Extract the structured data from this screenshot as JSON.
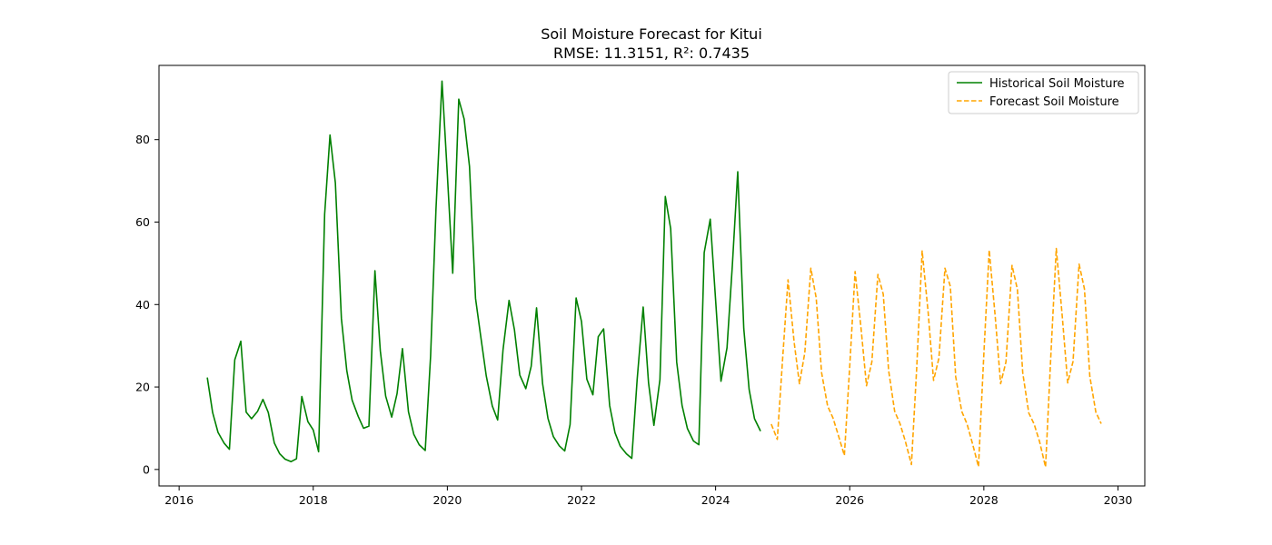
{
  "chart_data": {
    "type": "line",
    "title": "Soil Moisture Forecast for Kitui",
    "subtitle": "RMSE: 11.3151, R²: 0.7435",
    "xlabel": "",
    "ylabel": "",
    "xlim": [
      2015.7,
      2030.4
    ],
    "ylim": [
      -4,
      98
    ],
    "x_ticks": [
      2016,
      2018,
      2020,
      2022,
      2024,
      2026,
      2028,
      2030
    ],
    "y_ticks": [
      0,
      20,
      40,
      60,
      80
    ],
    "grid": false,
    "legend_position": "top-right",
    "series": [
      {
        "name": "Historical Soil Moisture",
        "color": "#008000",
        "style": "solid",
        "x": [
          2016.42,
          2016.5,
          2016.58,
          2016.67,
          2016.75,
          2016.83,
          2016.92,
          2017.0,
          2017.08,
          2017.17,
          2017.25,
          2017.33,
          2017.42,
          2017.5,
          2017.58,
          2017.67,
          2017.75,
          2017.83,
          2017.92,
          2018.0,
          2018.08,
          2018.17,
          2018.25,
          2018.33,
          2018.42,
          2018.5,
          2018.58,
          2018.67,
          2018.75,
          2018.83,
          2018.92,
          2019.0,
          2019.08,
          2019.17,
          2019.25,
          2019.33,
          2019.42,
          2019.5,
          2019.58,
          2019.67,
          2019.75,
          2019.83,
          2019.92,
          2020.0,
          2020.08,
          2020.17,
          2020.25,
          2020.33,
          2020.42,
          2020.5,
          2020.58,
          2020.67,
          2020.75,
          2020.83,
          2020.92,
          2021.0,
          2021.08,
          2021.17,
          2021.25,
          2021.33,
          2021.42,
          2021.5,
          2021.58,
          2021.67,
          2021.75,
          2021.83,
          2021.92,
          2022.0,
          2022.08,
          2022.17,
          2022.25,
          2022.33,
          2022.42,
          2022.5,
          2022.58,
          2022.67,
          2022.75,
          2022.83,
          2022.92,
          2023.0,
          2023.08,
          2023.17,
          2023.25,
          2023.33,
          2023.42,
          2023.5,
          2023.58,
          2023.67,
          2023.75,
          2023.83,
          2023.92,
          2024.0,
          2024.08,
          2024.17,
          2024.25,
          2024.33,
          2024.42,
          2024.5,
          2024.58,
          2024.67
        ],
        "values": [
          22.3,
          13.8,
          9.0,
          6.4,
          4.9,
          26.6,
          31.1,
          13.9,
          12.3,
          14.1,
          17.0,
          13.8,
          6.4,
          3.8,
          2.5,
          1.9,
          2.6,
          17.7,
          11.6,
          9.6,
          4.3,
          61.9,
          81.1,
          69.5,
          36.6,
          24.0,
          16.8,
          12.9,
          10.0,
          10.5,
          48.2,
          28.8,
          17.8,
          12.7,
          18.4,
          29.3,
          14.0,
          8.5,
          6.0,
          4.6,
          27.5,
          63.0,
          94.2,
          71.5,
          47.6,
          89.8,
          85.0,
          73.5,
          41.5,
          32.0,
          22.7,
          15.4,
          12.0,
          29.0,
          41.0,
          33.9,
          22.9,
          19.6,
          25.0,
          39.2,
          20.8,
          12.4,
          8.0,
          5.7,
          4.5,
          10.9,
          41.6,
          35.9,
          21.9,
          18.1,
          32.2,
          34.1,
          15.5,
          8.9,
          5.6,
          3.8,
          2.7,
          21.8,
          39.4,
          21.0,
          10.7,
          21.8,
          66.2,
          58.4,
          26.0,
          15.5,
          9.9,
          6.9,
          6.0,
          52.6,
          60.7,
          41.1,
          21.4,
          29.5,
          49.6,
          72.2,
          34.2,
          19.4,
          12.3,
          9.3
        ]
      },
      {
        "name": "Forecast Soil Moisture",
        "color": "#ffa500",
        "style": "dashed",
        "x": [
          2024.83,
          2024.92,
          2025.0,
          2025.08,
          2025.17,
          2025.25,
          2025.33,
          2025.42,
          2025.5,
          2025.58,
          2025.67,
          2025.75,
          2025.83,
          2025.92,
          2026.0,
          2026.08,
          2026.17,
          2026.25,
          2026.33,
          2026.42,
          2026.5,
          2026.58,
          2026.67,
          2026.75,
          2026.83,
          2026.92,
          2027.0,
          2027.08,
          2027.17,
          2027.25,
          2027.33,
          2027.42,
          2027.5,
          2027.58,
          2027.67,
          2027.75,
          2027.83,
          2027.92,
          2028.0,
          2028.08,
          2028.17,
          2028.25,
          2028.33,
          2028.42,
          2028.5,
          2028.58,
          2028.67,
          2028.75,
          2028.83,
          2028.92,
          2029.0,
          2029.08,
          2029.17,
          2029.25,
          2029.33,
          2029.42,
          2029.5,
          2029.58,
          2029.67,
          2029.75
        ],
        "values": [
          11.0,
          7.3,
          27.0,
          46.0,
          31.0,
          20.8,
          28.3,
          48.8,
          41.6,
          23.5,
          15.4,
          12.5,
          8.3,
          3.4,
          25.0,
          48.0,
          34.0,
          20.3,
          26.1,
          47.3,
          42.5,
          24.0,
          14.1,
          11.1,
          6.8,
          1.2,
          25.0,
          53.0,
          38.0,
          21.6,
          27.0,
          48.8,
          44.4,
          22.5,
          14.1,
          11.0,
          6.3,
          0.7,
          28.0,
          53.2,
          37.0,
          20.8,
          26.1,
          49.5,
          43.7,
          23.4,
          13.7,
          11.0,
          6.8,
          0.6,
          28.0,
          53.6,
          37.0,
          21.0,
          26.2,
          49.8,
          43.8,
          22.6,
          13.9,
          11.1
        ]
      }
    ]
  }
}
